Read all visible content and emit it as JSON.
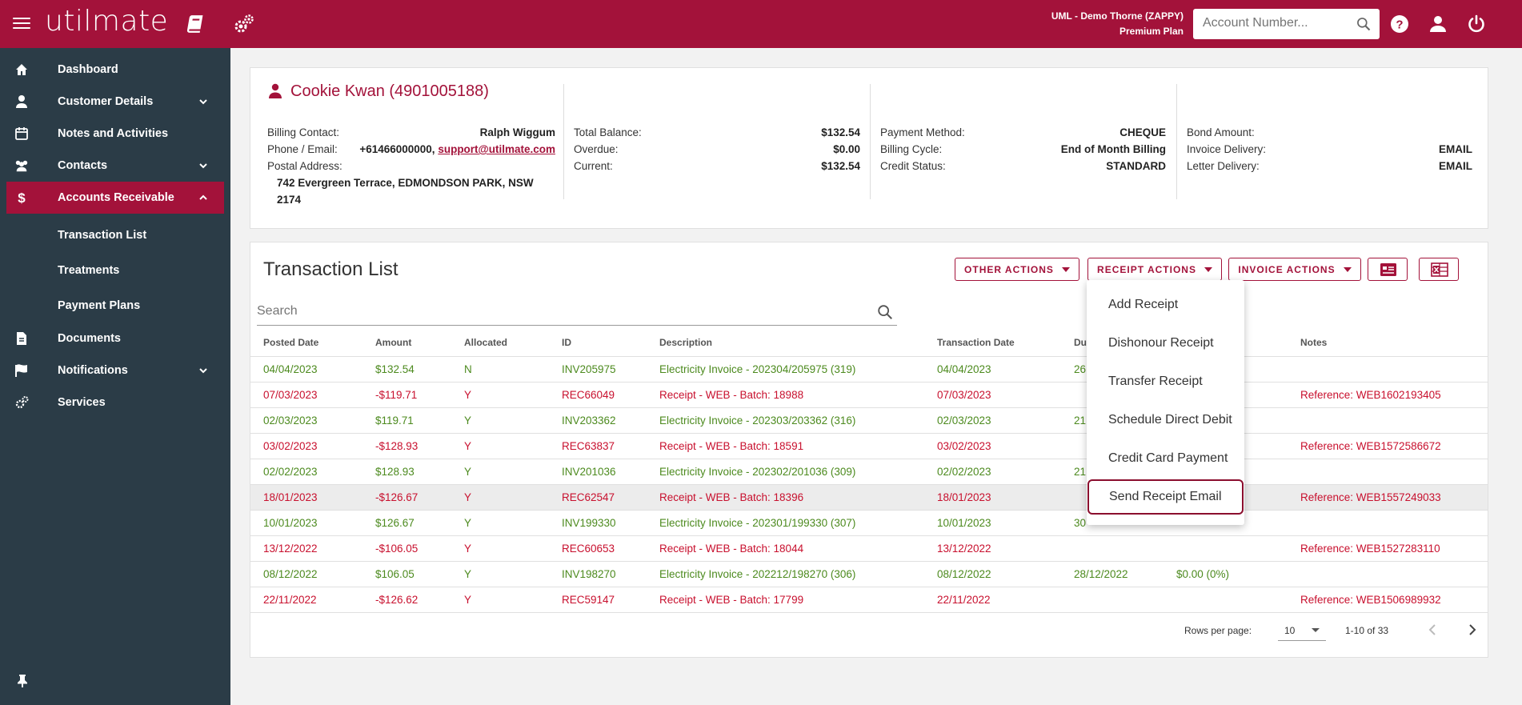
{
  "header": {
    "logo": "utilmate",
    "account_line1": "UML - Demo Thorne (ZAPPY)",
    "account_line2": "Premium Plan",
    "search_placeholder": "Account Number...",
    "icons": [
      "menu-icon",
      "book-icon",
      "settings-gear-icon",
      "search-icon",
      "help-icon",
      "user-icon",
      "power-icon"
    ],
    "brand_color": "#a3123a"
  },
  "sidebar": {
    "items": [
      {
        "label": "Dashboard",
        "icon": "home-icon"
      },
      {
        "label": "Customer Details",
        "icon": "person-icon"
      },
      {
        "label": "Notes and Activities",
        "icon": "calendar-icon"
      },
      {
        "label": "Contacts",
        "icon": "people-icon"
      },
      {
        "label": "Accounts Receivable",
        "icon": "dollar-icon"
      },
      {
        "label": "Documents",
        "icon": "document-icon"
      },
      {
        "label": "Notifications",
        "icon": "flag-icon"
      },
      {
        "label": "Services",
        "icon": "gears-icon"
      }
    ],
    "sub_items": [
      "Transaction List",
      "Treatments",
      "Payment Plans"
    ],
    "sidebar_color": "#2b3c47"
  },
  "customer": {
    "title": "Cookie Kwan (4901005188)",
    "col1": {
      "billing_contact_label": "Billing Contact:",
      "billing_contact": "Ralph Wiggum",
      "phone_label": "Phone / Email:",
      "phone": "+61466000000, ",
      "email": "support@utilmate.com",
      "postal_label": "Postal Address:",
      "postal": "742 Evergreen Terrace, EDMONDSON PARK, NSW 2174"
    },
    "col2": {
      "total_label": "Total Balance:",
      "total": "$132.54",
      "overdue_label": "Overdue:",
      "overdue": "$0.00",
      "current_label": "Current:",
      "current": "$132.54"
    },
    "col3": {
      "payment_label": "Payment Method:",
      "payment": "CHEQUE",
      "cycle_label": "Billing Cycle:",
      "cycle": "End of Month Billing",
      "credit_label": "Credit Status:",
      "credit": "STANDARD"
    },
    "col4": {
      "bond_label": "Bond Amount:",
      "bond": "",
      "invoice_label": "Invoice Delivery:",
      "invoice": "EMAIL",
      "letter_label": "Letter Delivery:",
      "letter": "EMAIL"
    }
  },
  "transactions": {
    "title": "Transaction List",
    "other_actions": "OTHER ACTIONS",
    "receipt_actions": "RECEIPT ACTIONS",
    "invoice_actions": "INVOICE ACTIONS",
    "search_placeholder": "Search",
    "columns": [
      "Posted Date",
      "Amount",
      "Allocated",
      "ID",
      "Description",
      "Transaction Date",
      "Due",
      "",
      "Notes"
    ],
    "rows": [
      {
        "type": "pos",
        "posted": "04/04/2023",
        "amount": "$132.54",
        "alloc": "N",
        "id": "INV205975",
        "desc": "Electricity Invoice - 202304/205975 (319)",
        "tdate": "04/04/2023",
        "due": "26",
        "bal": "",
        "notes": ""
      },
      {
        "type": "neg",
        "posted": "07/03/2023",
        "amount": "-$119.71",
        "alloc": "Y",
        "id": "REC66049",
        "desc": "Receipt - WEB - Batch: 18988",
        "tdate": "07/03/2023",
        "due": "",
        "bal": "",
        "notes": "Reference: WEB1602193405"
      },
      {
        "type": "pos",
        "posted": "02/03/2023",
        "amount": "$119.71",
        "alloc": "Y",
        "id": "INV203362",
        "desc": "Electricity Invoice - 202303/203362 (316)",
        "tdate": "02/03/2023",
        "due": "21",
        "bal": "",
        "notes": ""
      },
      {
        "type": "neg",
        "posted": "03/02/2023",
        "amount": "-$128.93",
        "alloc": "Y",
        "id": "REC63837",
        "desc": "Receipt - WEB - Batch: 18591",
        "tdate": "03/02/2023",
        "due": "",
        "bal": "",
        "notes": "Reference: WEB1572586672"
      },
      {
        "type": "pos",
        "posted": "02/02/2023",
        "amount": "$128.93",
        "alloc": "Y",
        "id": "INV201036",
        "desc": "Electricity Invoice - 202302/201036 (309)",
        "tdate": "02/02/2023",
        "due": "21",
        "bal": "",
        "notes": ""
      },
      {
        "type": "neg",
        "posted": "18/01/2023",
        "amount": "-$126.67",
        "alloc": "Y",
        "id": "REC62547",
        "desc": "Receipt - WEB - Batch: 18396",
        "tdate": "18/01/2023",
        "due": "",
        "bal": "",
        "notes": "Reference: WEB1557249033"
      },
      {
        "type": "pos",
        "posted": "10/01/2023",
        "amount": "$126.67",
        "alloc": "Y",
        "id": "INV199330",
        "desc": "Electricity Invoice - 202301/199330 (307)",
        "tdate": "10/01/2023",
        "due": "30",
        "bal": "",
        "notes": ""
      },
      {
        "type": "neg",
        "posted": "13/12/2022",
        "amount": "-$106.05",
        "alloc": "Y",
        "id": "REC60653",
        "desc": "Receipt - WEB - Batch: 18044",
        "tdate": "13/12/2022",
        "due": "",
        "bal": "",
        "notes": "Reference: WEB1527283110"
      },
      {
        "type": "pos",
        "posted": "08/12/2022",
        "amount": "$106.05",
        "alloc": "Y",
        "id": "INV198270",
        "desc": "Electricity Invoice - 202212/198270 (306)",
        "tdate": "08/12/2022",
        "due": "28/12/2022",
        "bal": "$0.00 (0%)",
        "notes": ""
      },
      {
        "type": "neg",
        "posted": "22/11/2022",
        "amount": "-$126.62",
        "alloc": "Y",
        "id": "REC59147",
        "desc": "Receipt - WEB - Batch: 17799",
        "tdate": "22/11/2022",
        "due": "",
        "bal": "",
        "notes": "Reference: WEB1506989932"
      }
    ],
    "rows_per_page_label": "Rows per page:",
    "rows_per_page": "10",
    "range": "1-10 of 33",
    "positive_color": "#4c8a1e",
    "negative_color": "#c8102e"
  },
  "receipt_menu": {
    "items": [
      "Add Receipt",
      "Dishonour Receipt",
      "Transfer Receipt",
      "Schedule Direct Debit",
      "Credit Card Payment",
      "Send Receipt Email"
    ],
    "focused": "Send Receipt Email"
  }
}
